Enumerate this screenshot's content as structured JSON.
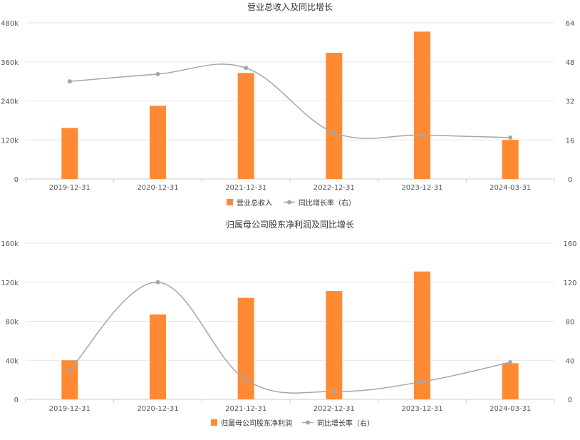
{
  "chart_data": [
    {
      "type": "bar",
      "title": "营业总收入及同比增长",
      "categories": [
        "2019-12-31",
        "2020-12-31",
        "2021-12-31",
        "2022-12-31",
        "2023-12-31",
        "2024-03-31"
      ],
      "series": [
        {
          "name": "营业总收入",
          "type": "bar",
          "axis": "left",
          "values": [
            157000,
            225000,
            326000,
            388000,
            453000,
            120000
          ]
        },
        {
          "name": "同比增长率（右）",
          "type": "line",
          "axis": "right",
          "values": [
            40,
            43,
            45.5,
            19,
            18,
            17
          ]
        }
      ],
      "yleft": {
        "ticks": [
          "0",
          "120k",
          "240k",
          "360k",
          "480k"
        ],
        "lim": [
          0,
          480000
        ]
      },
      "yright": {
        "ticks": [
          "0",
          "16",
          "32",
          "48",
          "64"
        ],
        "lim": [
          0,
          64
        ]
      },
      "grid": true,
      "legend_position": "bottom"
    },
    {
      "type": "bar",
      "title": "归属母公司股东净利润及同比增长",
      "categories": [
        "2019-12-31",
        "2020-12-31",
        "2021-12-31",
        "2022-12-31",
        "2023-12-31",
        "2024-03-31"
      ],
      "series": [
        {
          "name": "归属母公司股东净利润",
          "type": "bar",
          "axis": "left",
          "values": [
            40000,
            87000,
            104000,
            111000,
            131000,
            37000
          ]
        },
        {
          "name": "同比增长率（右）",
          "type": "line",
          "axis": "right",
          "values": [
            30,
            120,
            20,
            8,
            18,
            38
          ]
        }
      ],
      "yleft": {
        "ticks": [
          "0",
          "40k",
          "80k",
          "120k",
          "160k"
        ],
        "lim": [
          0,
          160000
        ]
      },
      "yright": {
        "ticks": [
          "0",
          "40",
          "80",
          "120",
          "160"
        ],
        "lim": [
          0,
          160
        ]
      },
      "grid": true,
      "legend_position": "bottom"
    }
  ],
  "colors": {
    "bar": "#ff8a33",
    "line": "#a6a6a6",
    "grid": "#e6e6e6",
    "axis": "#cccccc"
  }
}
